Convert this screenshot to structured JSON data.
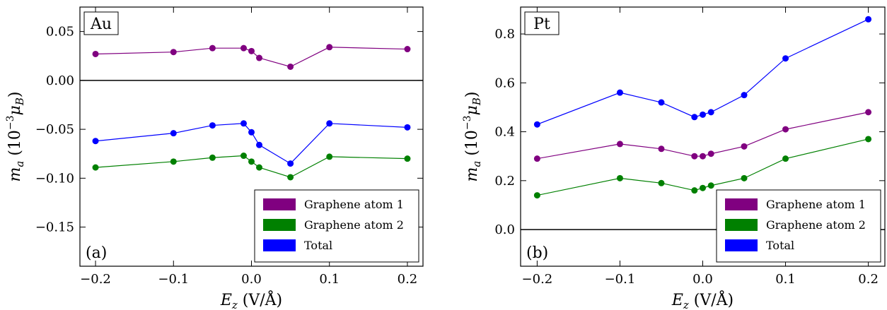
{
  "chart_data": [
    {
      "type": "line",
      "panel_tag": "Au",
      "panel_label": "(a)",
      "xlabel": "E_z (V/Å)",
      "ylabel": "m_a (10^-3 μ_B)",
      "xlim": [
        -0.22,
        0.22
      ],
      "ylim": [
        -0.19,
        0.075
      ],
      "x_ticks": [
        -0.2,
        -0.1,
        0.0,
        0.1,
        0.2
      ],
      "x_tick_labels": [
        "−0.2",
        "−0.1",
        "0.0",
        "0.1",
        "0.2"
      ],
      "y_ticks": [
        -0.15,
        -0.1,
        -0.05,
        0.0,
        0.05
      ],
      "y_tick_labels": [
        "−0.15",
        "−0.10",
        "−0.05",
        "0.00",
        "0.05"
      ],
      "zero_line": true,
      "legend_position": "lower-right",
      "x": [
        -0.2,
        -0.1,
        -0.05,
        -0.01,
        0.0,
        0.01,
        0.05,
        0.1,
        0.2
      ],
      "series": [
        {
          "name": "Graphene atom 1",
          "color": "#800080",
          "values": [
            0.027,
            0.029,
            0.033,
            0.033,
            0.03,
            0.023,
            0.014,
            0.034,
            0.032
          ]
        },
        {
          "name": "Graphene atom 2",
          "color": "#008000",
          "values": [
            -0.089,
            -0.083,
            -0.079,
            -0.077,
            -0.083,
            -0.089,
            -0.099,
            -0.078,
            -0.08
          ]
        },
        {
          "name": "Total",
          "color": "#0000ff",
          "values": [
            -0.062,
            -0.054,
            -0.046,
            -0.044,
            -0.053,
            -0.066,
            -0.085,
            -0.044,
            -0.048
          ]
        }
      ]
    },
    {
      "type": "line",
      "panel_tag": "Pt",
      "panel_label": "(b)",
      "xlabel": "E_z (V/Å)",
      "ylabel": "m_a (10^-3 μ_B)",
      "xlim": [
        -0.22,
        0.22
      ],
      "ylim": [
        -0.15,
        0.91
      ],
      "x_ticks": [
        -0.2,
        -0.1,
        0.0,
        0.1,
        0.2
      ],
      "x_tick_labels": [
        "−0.2",
        "−0.1",
        "0.0",
        "0.1",
        "0.2"
      ],
      "y_ticks": [
        0.0,
        0.2,
        0.4,
        0.6,
        0.8
      ],
      "y_tick_labels": [
        "0.0",
        "0.2",
        "0.4",
        "0.6",
        "0.8"
      ],
      "zero_line": true,
      "legend_position": "lower-right",
      "x": [
        -0.2,
        -0.1,
        -0.05,
        -0.01,
        0.0,
        0.01,
        0.05,
        0.1,
        0.2
      ],
      "series": [
        {
          "name": "Graphene atom 1",
          "color": "#800080",
          "values": [
            0.29,
            0.35,
            0.33,
            0.3,
            0.3,
            0.31,
            0.34,
            0.41,
            0.48
          ]
        },
        {
          "name": "Graphene atom 2",
          "color": "#008000",
          "values": [
            0.14,
            0.21,
            0.19,
            0.16,
            0.17,
            0.18,
            0.21,
            0.29,
            0.37
          ]
        },
        {
          "name": "Total",
          "color": "#0000ff",
          "values": [
            0.43,
            0.56,
            0.52,
            0.46,
            0.47,
            0.48,
            0.55,
            0.7,
            0.86
          ]
        }
      ]
    }
  ]
}
